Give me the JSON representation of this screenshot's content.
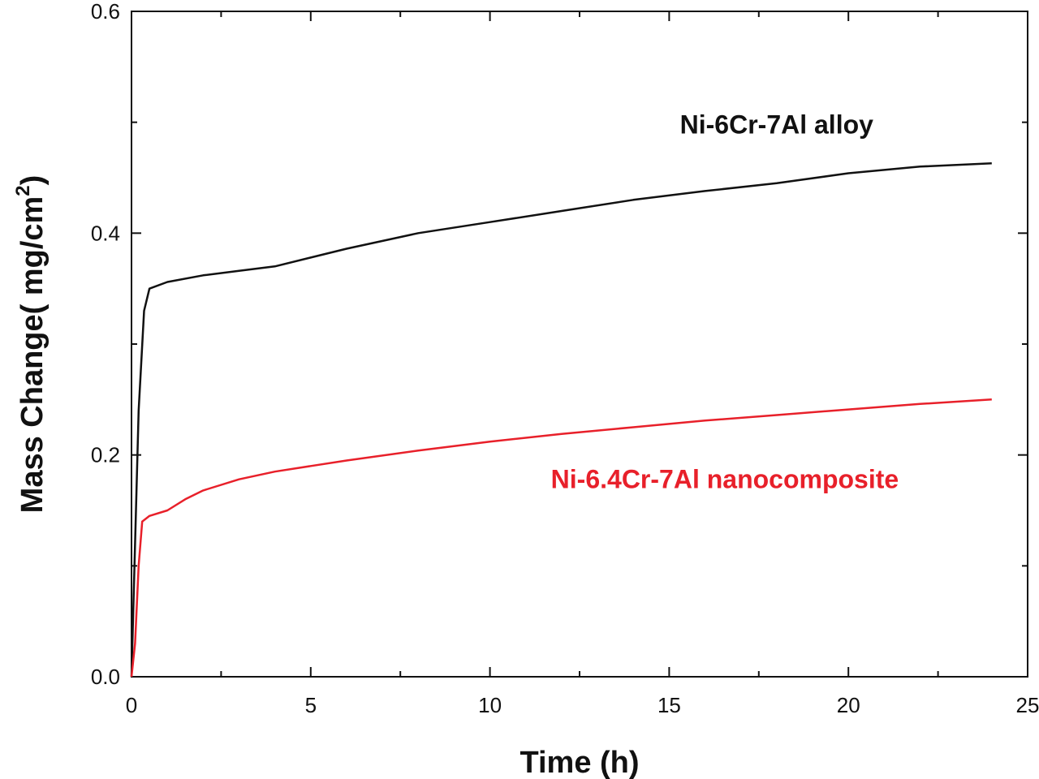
{
  "chart_data": {
    "type": "line",
    "xlabel": "Time (h)",
    "ylabel": "Mass Change( mg/cm",
    "ylabel_superscript": "2",
    "ylabel_suffix": ")",
    "xlim": [
      0,
      25
    ],
    "ylim": [
      0.0,
      0.6
    ],
    "x_ticks": [
      "0",
      "5",
      "10",
      "15",
      "20",
      "25"
    ],
    "y_ticks": [
      "0.0",
      "0.2",
      "0.4",
      "0.6"
    ],
    "grid": false,
    "legend": "none",
    "series": [
      {
        "name": "Ni-6Cr-7Al alloy",
        "color": "#111111",
        "points": [
          [
            0,
            0.0
          ],
          [
            0.1,
            0.12
          ],
          [
            0.2,
            0.24
          ],
          [
            0.35,
            0.33
          ],
          [
            0.5,
            0.35
          ],
          [
            1,
            0.356
          ],
          [
            2,
            0.362
          ],
          [
            3,
            0.366
          ],
          [
            4,
            0.37
          ],
          [
            5,
            0.378
          ],
          [
            6,
            0.386
          ],
          [
            8,
            0.4
          ],
          [
            10,
            0.41
          ],
          [
            12,
            0.42
          ],
          [
            14,
            0.43
          ],
          [
            16,
            0.438
          ],
          [
            18,
            0.445
          ],
          [
            20,
            0.454
          ],
          [
            22,
            0.46
          ],
          [
            24,
            0.463
          ]
        ]
      },
      {
        "name": "Ni-6.4Cr-7Al nanocomposite",
        "color": "#e8202a",
        "points": [
          [
            0,
            0.0
          ],
          [
            0.1,
            0.03
          ],
          [
            0.2,
            0.1
          ],
          [
            0.3,
            0.14
          ],
          [
            0.5,
            0.145
          ],
          [
            1,
            0.15
          ],
          [
            1.5,
            0.16
          ],
          [
            2,
            0.168
          ],
          [
            3,
            0.178
          ],
          [
            4,
            0.185
          ],
          [
            5,
            0.19
          ],
          [
            6,
            0.195
          ],
          [
            8,
            0.204
          ],
          [
            10,
            0.212
          ],
          [
            12,
            0.219
          ],
          [
            14,
            0.225
          ],
          [
            16,
            0.231
          ],
          [
            18,
            0.236
          ],
          [
            20,
            0.241
          ],
          [
            22,
            0.246
          ],
          [
            24,
            0.25
          ]
        ]
      }
    ],
    "annotations": [
      {
        "text": "Ni-6Cr-7Al alloy",
        "color": "#111111",
        "x": 15.3,
        "y": 0.49
      },
      {
        "text": "Ni-6.4Cr-7Al nanocomposite",
        "color": "#e8202a",
        "x": 11.7,
        "y": 0.17
      }
    ]
  }
}
